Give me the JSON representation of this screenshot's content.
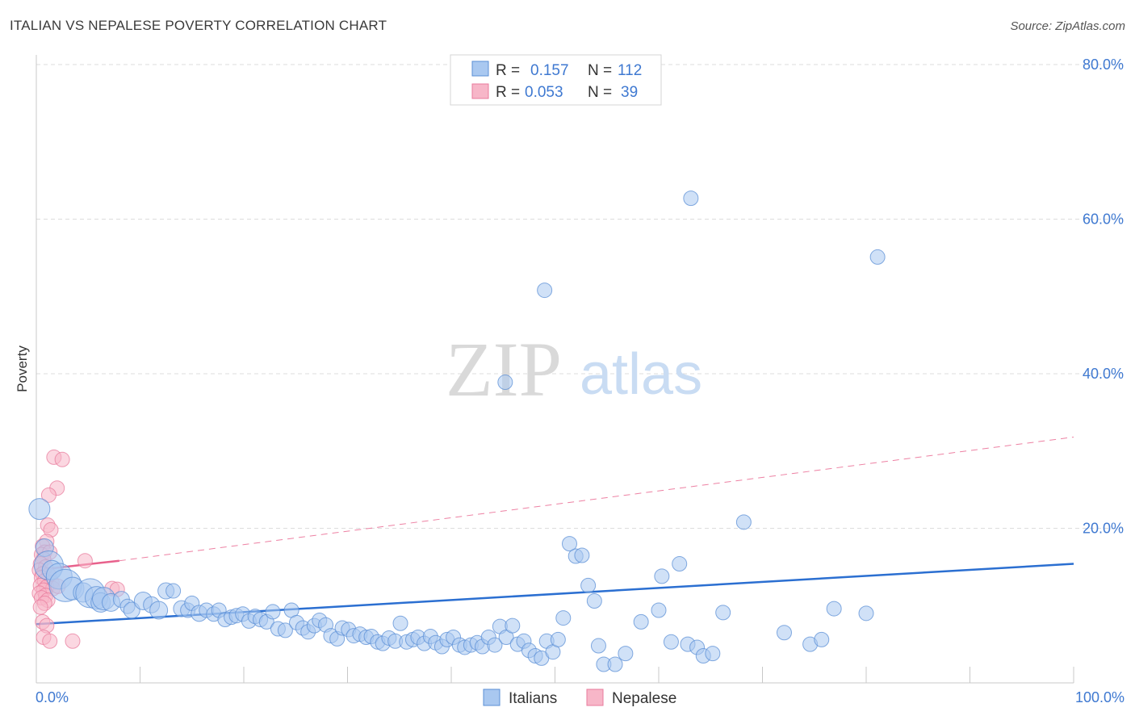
{
  "title": "ITALIAN VS NEPALESE POVERTY CORRELATION CHART",
  "source": "Source: ZipAtlas.com",
  "watermark": {
    "zip": "ZIP",
    "atlas": "atlas"
  },
  "colors": {
    "italians_fill": "#a9c8f0",
    "italians_stroke": "#5b8fd6",
    "italians_line": "#2b6fd1",
    "nepalese_fill": "#f7b6c8",
    "nepalese_stroke": "#e87b9c",
    "nepalese_line": "#e8618c",
    "grid": "#dddddd",
    "tick_text": "#3f79d1"
  },
  "legend": {
    "rows": [
      {
        "r_label": "R =",
        "r_value": "0.157",
        "n_label": "N =",
        "n_value": "112"
      },
      {
        "r_label": "R =",
        "r_value": "0.053",
        "n_label": "N =",
        "n_value": "39"
      }
    ]
  },
  "chart_data": {
    "type": "scatter",
    "title": "ITALIAN VS NEPALESE POVERTY CORRELATION CHART",
    "xlabel": "",
    "ylabel": "Poverty",
    "xlim": [
      0,
      100
    ],
    "ylim": [
      0,
      80
    ],
    "x_tick_labels": [
      "0.0%",
      "100.0%"
    ],
    "y_ticks": [
      20,
      40,
      60,
      80
    ],
    "y_tick_labels": [
      "20.0%",
      "40.0%",
      "60.0%",
      "80.0%"
    ],
    "grid": true,
    "legend_position": "top-center",
    "series": [
      {
        "name": "Italians",
        "r": 0.157,
        "n": 112,
        "trend": {
          "x": [
            0,
            100
          ],
          "y": [
            7.6,
            15.4
          ],
          "dashed_extension": false
        },
        "points": [
          [
            0.3,
            22.5,
            13
          ],
          [
            0.8,
            17.5,
            11
          ],
          [
            1.2,
            15.2,
            18
          ],
          [
            1.5,
            14.6,
            12
          ],
          [
            2.2,
            13.8,
            16
          ],
          [
            2.8,
            12.6,
            20
          ],
          [
            3.5,
            12.2,
            14
          ],
          [
            4.5,
            11.7,
            12
          ],
          [
            5.2,
            11.6,
            18
          ],
          [
            5.8,
            11.0,
            14
          ],
          [
            6.2,
            10.4,
            12
          ],
          [
            6.5,
            10.9,
            14
          ],
          [
            7.2,
            10.4,
            11
          ],
          [
            8.2,
            10.8,
            10
          ],
          [
            8.8,
            9.9,
            9
          ],
          [
            9.2,
            9.4,
            10
          ],
          [
            10.3,
            10.6,
            11
          ],
          [
            11.1,
            10.1,
            10
          ],
          [
            11.8,
            9.4,
            11
          ],
          [
            12.5,
            11.9,
            10
          ],
          [
            13.2,
            11.9,
            9
          ],
          [
            14.0,
            9.6,
            10
          ],
          [
            14.6,
            9.4,
            9
          ],
          [
            15.0,
            10.3,
            9
          ],
          [
            15.7,
            9.0,
            10
          ],
          [
            16.4,
            9.4,
            9
          ],
          [
            17.1,
            8.9,
            9
          ],
          [
            17.6,
            9.4,
            9
          ],
          [
            18.2,
            8.2,
            9
          ],
          [
            18.8,
            8.5,
            9
          ],
          [
            19.3,
            8.7,
            9
          ],
          [
            19.9,
            8.9,
            9
          ],
          [
            20.5,
            8.0,
            9
          ],
          [
            21.1,
            8.6,
            9
          ],
          [
            21.6,
            8.2,
            9
          ],
          [
            22.2,
            7.9,
            9
          ],
          [
            22.8,
            9.2,
            9
          ],
          [
            23.3,
            7.0,
            9
          ],
          [
            24.0,
            6.8,
            9
          ],
          [
            24.6,
            9.4,
            9
          ],
          [
            25.1,
            7.8,
            9
          ],
          [
            25.7,
            7.1,
            9
          ],
          [
            26.2,
            6.6,
            9
          ],
          [
            26.8,
            7.4,
            9
          ],
          [
            27.3,
            8.1,
            9
          ],
          [
            27.9,
            7.5,
            9
          ],
          [
            28.4,
            6.1,
            9
          ],
          [
            29.0,
            5.7,
            9
          ],
          [
            29.5,
            7.1,
            9
          ],
          [
            30.1,
            6.9,
            9
          ],
          [
            30.6,
            6.1,
            9
          ],
          [
            31.2,
            6.3,
            9
          ],
          [
            31.8,
            5.9,
            9
          ],
          [
            32.3,
            6.0,
            9
          ],
          [
            32.9,
            5.3,
            9
          ],
          [
            33.4,
            5.1,
            9
          ],
          [
            34.0,
            5.8,
            9
          ],
          [
            34.6,
            5.4,
            9
          ],
          [
            35.1,
            7.7,
            9
          ],
          [
            35.7,
            5.3,
            9
          ],
          [
            36.3,
            5.6,
            9
          ],
          [
            36.8,
            5.9,
            9
          ],
          [
            37.4,
            5.1,
            9
          ],
          [
            38.0,
            6.0,
            9
          ],
          [
            38.5,
            5.2,
            9
          ],
          [
            39.1,
            4.7,
            9
          ],
          [
            39.6,
            5.6,
            9
          ],
          [
            40.2,
            5.9,
            9
          ],
          [
            40.8,
            4.9,
            9
          ],
          [
            41.3,
            4.6,
            9
          ],
          [
            41.9,
            4.9,
            9
          ],
          [
            42.5,
            5.2,
            9
          ],
          [
            43.0,
            4.7,
            9
          ],
          [
            43.6,
            5.9,
            9
          ],
          [
            44.2,
            4.9,
            9
          ],
          [
            44.7,
            7.3,
            9
          ],
          [
            45.3,
            5.9,
            9
          ],
          [
            45.9,
            7.4,
            9
          ],
          [
            46.4,
            5.0,
            9
          ],
          [
            47.0,
            5.4,
            9
          ],
          [
            47.5,
            4.2,
            9
          ],
          [
            48.1,
            3.5,
            9
          ],
          [
            48.7,
            3.2,
            9
          ],
          [
            49.2,
            5.4,
            9
          ],
          [
            49.8,
            4.0,
            9
          ],
          [
            50.3,
            5.6,
            9
          ],
          [
            50.8,
            8.4,
            9
          ],
          [
            51.4,
            18.0,
            9
          ],
          [
            52.0,
            16.4,
            9
          ],
          [
            52.6,
            16.5,
            9
          ],
          [
            53.2,
            12.6,
            9
          ],
          [
            53.8,
            10.6,
            9
          ],
          [
            54.2,
            4.8,
            9
          ],
          [
            54.7,
            2.4,
            9
          ],
          [
            55.8,
            2.4,
            9
          ],
          [
            56.8,
            3.8,
            9
          ],
          [
            58.3,
            7.9,
            9
          ],
          [
            60.0,
            9.4,
            9
          ],
          [
            61.2,
            5.3,
            9
          ],
          [
            62.8,
            5.0,
            9
          ],
          [
            63.7,
            4.6,
            9
          ],
          [
            64.3,
            3.5,
            9
          ],
          [
            65.2,
            3.8,
            9
          ],
          [
            66.2,
            9.1,
            9
          ],
          [
            68.2,
            20.8,
            9
          ],
          [
            72.1,
            6.5,
            9
          ],
          [
            74.6,
            5.0,
            9
          ],
          [
            75.7,
            5.6,
            9
          ],
          [
            76.9,
            9.6,
            9
          ],
          [
            80.0,
            9.0,
            9
          ],
          [
            60.3,
            13.8,
            9
          ],
          [
            62.0,
            15.4,
            9
          ],
          [
            45.2,
            38.9,
            9
          ],
          [
            49.0,
            50.8,
            9
          ],
          [
            63.1,
            62.7,
            9
          ],
          [
            81.1,
            55.1,
            9
          ]
        ]
      },
      {
        "name": "Nepalese",
        "r": 0.053,
        "n": 39,
        "trend": {
          "x": [
            0,
            8.0
          ],
          "y": [
            14.6,
            15.8
          ],
          "dashed_extension": true,
          "dashed_to": [
            100,
            31.8
          ]
        },
        "points": [
          [
            1.7,
            29.2,
            9
          ],
          [
            2.5,
            28.9,
            9
          ],
          [
            2.0,
            25.2,
            9
          ],
          [
            1.2,
            24.3,
            9
          ],
          [
            1.1,
            20.4,
            9
          ],
          [
            1.4,
            19.8,
            9
          ],
          [
            1.0,
            18.3,
            9
          ],
          [
            0.6,
            17.7,
            9
          ],
          [
            0.8,
            16.9,
            9
          ],
          [
            0.5,
            16.6,
            9
          ],
          [
            1.3,
            16.9,
            9
          ],
          [
            0.7,
            16.0,
            9
          ],
          [
            0.4,
            15.4,
            9
          ],
          [
            0.9,
            15.0,
            9
          ],
          [
            0.3,
            14.6,
            9
          ],
          [
            0.6,
            14.1,
            9
          ],
          [
            1.2,
            14.0,
            9
          ],
          [
            0.5,
            13.6,
            9
          ],
          [
            0.8,
            13.2,
            9
          ],
          [
            1.5,
            13.0,
            9
          ],
          [
            0.4,
            12.6,
            9
          ],
          [
            1.0,
            12.4,
            9
          ],
          [
            1.6,
            12.2,
            9
          ],
          [
            0.7,
            12.0,
            9
          ],
          [
            0.3,
            11.6,
            9
          ],
          [
            0.9,
            11.3,
            9
          ],
          [
            0.5,
            11.0,
            9
          ],
          [
            1.1,
            10.7,
            9
          ],
          [
            0.8,
            10.3,
            9
          ],
          [
            4.7,
            15.8,
            9
          ],
          [
            7.3,
            12.2,
            9
          ],
          [
            7.8,
            12.1,
            9
          ],
          [
            0.6,
            7.9,
            9
          ],
          [
            1.0,
            7.4,
            9
          ],
          [
            0.7,
            5.9,
            9
          ],
          [
            1.3,
            5.4,
            9
          ],
          [
            3.5,
            5.4,
            9
          ],
          [
            2.1,
            12.5,
            9
          ],
          [
            0.4,
            9.8,
            9
          ]
        ]
      }
    ]
  },
  "bottom_legend": {
    "items": [
      "Italians",
      "Nepalese"
    ]
  }
}
